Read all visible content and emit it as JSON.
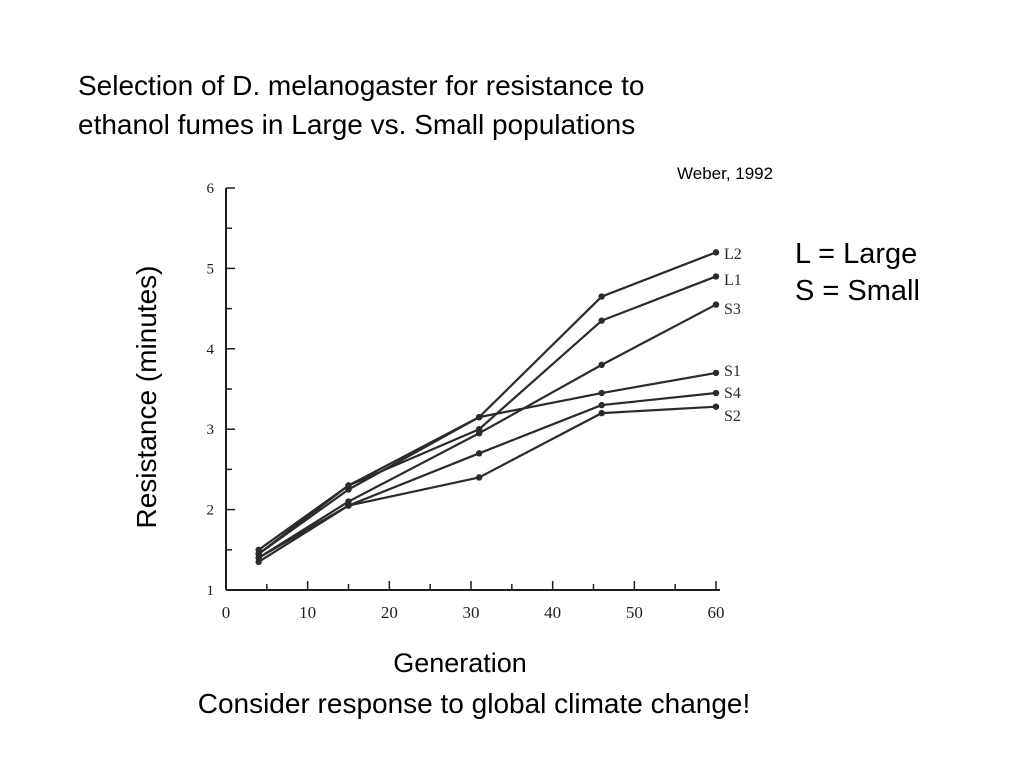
{
  "slide": {
    "title_lines": [
      "Selection of D. melanogaster for resistance to",
      "ethanol fumes in Large vs. Small populations"
    ],
    "citation": "Weber, 1992",
    "legend_note_lines": [
      "L = Large",
      "S = Small"
    ],
    "footnote": "Consider response to global climate change!"
  },
  "colors": {
    "line": "#2b2b2b",
    "axis": "#1e1e1e",
    "background": "#ffffff"
  },
  "chart_data": {
    "type": "line",
    "xlabel": "Generation",
    "ylabel": "Resistance (minutes)",
    "xlim": [
      0,
      60
    ],
    "ylim": [
      1,
      6
    ],
    "x_ticks": [
      0,
      10,
      20,
      30,
      40,
      50,
      60
    ],
    "y_ticks": [
      1,
      2,
      3,
      4,
      5,
      6
    ],
    "grid": false,
    "legend_position": "right end labels",
    "series": [
      {
        "name": "L2",
        "x": [
          4,
          15,
          31,
          46,
          60
        ],
        "y": [
          1.5,
          2.3,
          3.15,
          4.65,
          5.2
        ]
      },
      {
        "name": "L1",
        "x": [
          4,
          15,
          31,
          46,
          60
        ],
        "y": [
          1.45,
          2.3,
          3.0,
          4.35,
          4.9
        ]
      },
      {
        "name": "S3",
        "x": [
          4,
          15,
          31,
          46,
          60
        ],
        "y": [
          1.4,
          2.1,
          2.95,
          3.8,
          4.55
        ]
      },
      {
        "name": "S1",
        "x": [
          4,
          15,
          31,
          46,
          60
        ],
        "y": [
          1.45,
          2.25,
          3.15,
          3.45,
          3.7
        ]
      },
      {
        "name": "S4",
        "x": [
          4,
          15,
          31,
          46,
          60
        ],
        "y": [
          1.4,
          2.05,
          2.7,
          3.3,
          3.45
        ]
      },
      {
        "name": "S2",
        "x": [
          4,
          15,
          31,
          46,
          60
        ],
        "y": [
          1.35,
          2.05,
          2.4,
          3.2,
          3.28
        ]
      }
    ]
  }
}
